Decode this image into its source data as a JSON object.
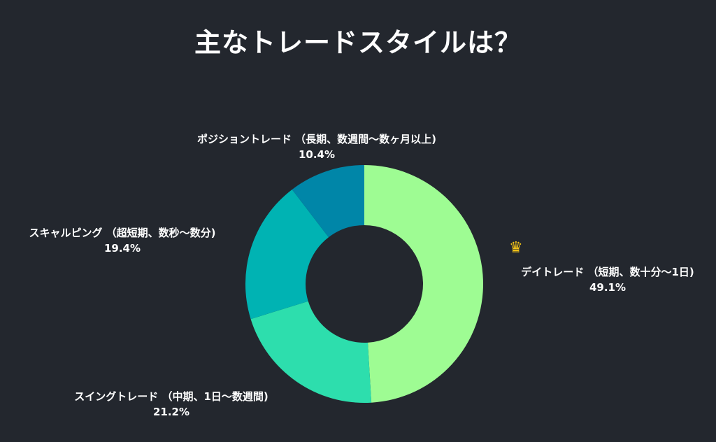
{
  "title": "主なトレードスタイルは？",
  "chart_data": {
    "type": "pie",
    "donut": true,
    "legend": "none",
    "slices": [
      {
        "name": "デイトレード （短期、数十分〜1日)",
        "value": 49.1,
        "label": "49.1%",
        "color": "#9efc93"
      },
      {
        "name": "スイングトレード （中期、1日〜数週間)",
        "value": 21.2,
        "label": "21.2%",
        "color": "#2ddead"
      },
      {
        "name": "スキャルピング （超短期、数秒〜数分)",
        "value": 19.4,
        "label": "19.4%",
        "color": "#00b3b3"
      },
      {
        "name": "ポジショントレード （長期、数週間〜数ヶ月以上)",
        "value": 10.4,
        "label": "10.4%",
        "color": "#0086a8"
      }
    ]
  },
  "crown_icon": "crown-icon",
  "crown_color": "#f5c518",
  "background": "#23272e"
}
